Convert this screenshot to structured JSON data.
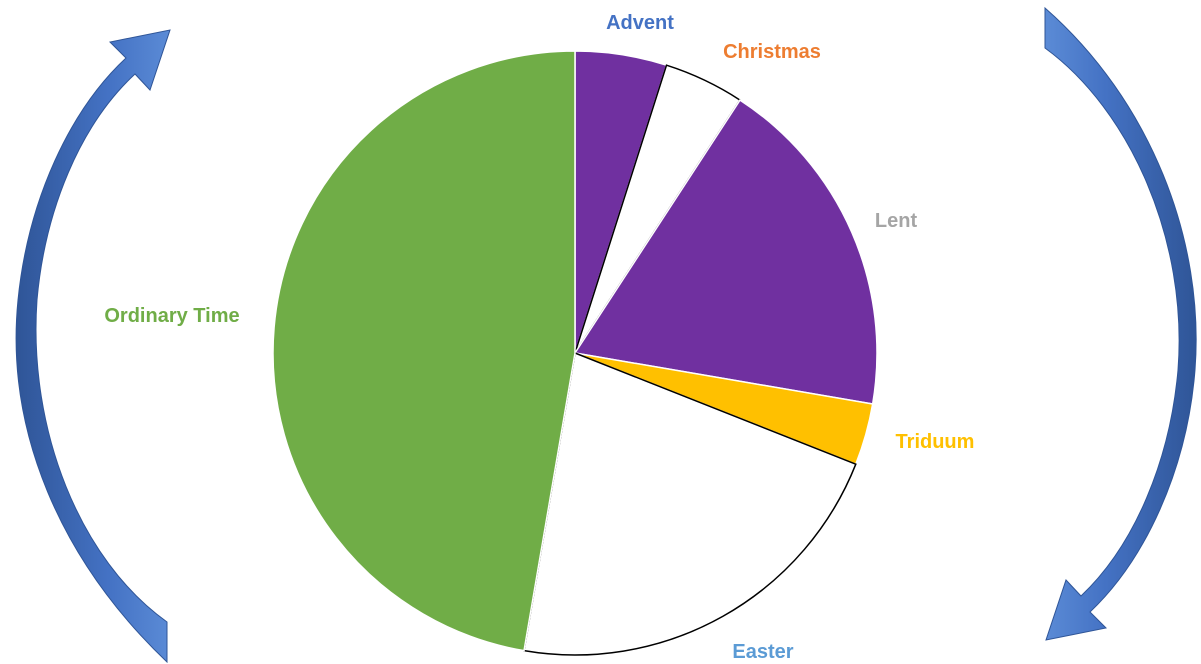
{
  "chart_data": {
    "type": "pie",
    "slices": [
      {
        "label": "Advent",
        "value": 4.9,
        "fill": "#7030A0",
        "label_color": "#4472C4"
      },
      {
        "label": "Christmas",
        "value": 4.3,
        "fill": "#FFFFFF",
        "label_color": "#ED7D31"
      },
      {
        "label": "Lent",
        "value": 18.5,
        "fill": "#7030A0",
        "label_color": "#A5A5A5"
      },
      {
        "label": "Triduum",
        "value": 3.3,
        "fill": "#FFC000",
        "label_color": "#FFC000"
      },
      {
        "label": "Easter",
        "value": 21.7,
        "fill": "#FFFFFF",
        "label_color": "#5B9BD5"
      },
      {
        "label": "Ordinary Time",
        "value": 47.3,
        "fill": "#70AD47",
        "label_color": "#70AD47"
      }
    ],
    "start": "top",
    "direction": "clockwise"
  },
  "decorations": {
    "left_arrow": {
      "icon": "curved-arrow-up-icon",
      "color": "#4472C4"
    },
    "right_arrow": {
      "icon": "curved-arrow-down-icon",
      "color": "#4472C4"
    }
  }
}
